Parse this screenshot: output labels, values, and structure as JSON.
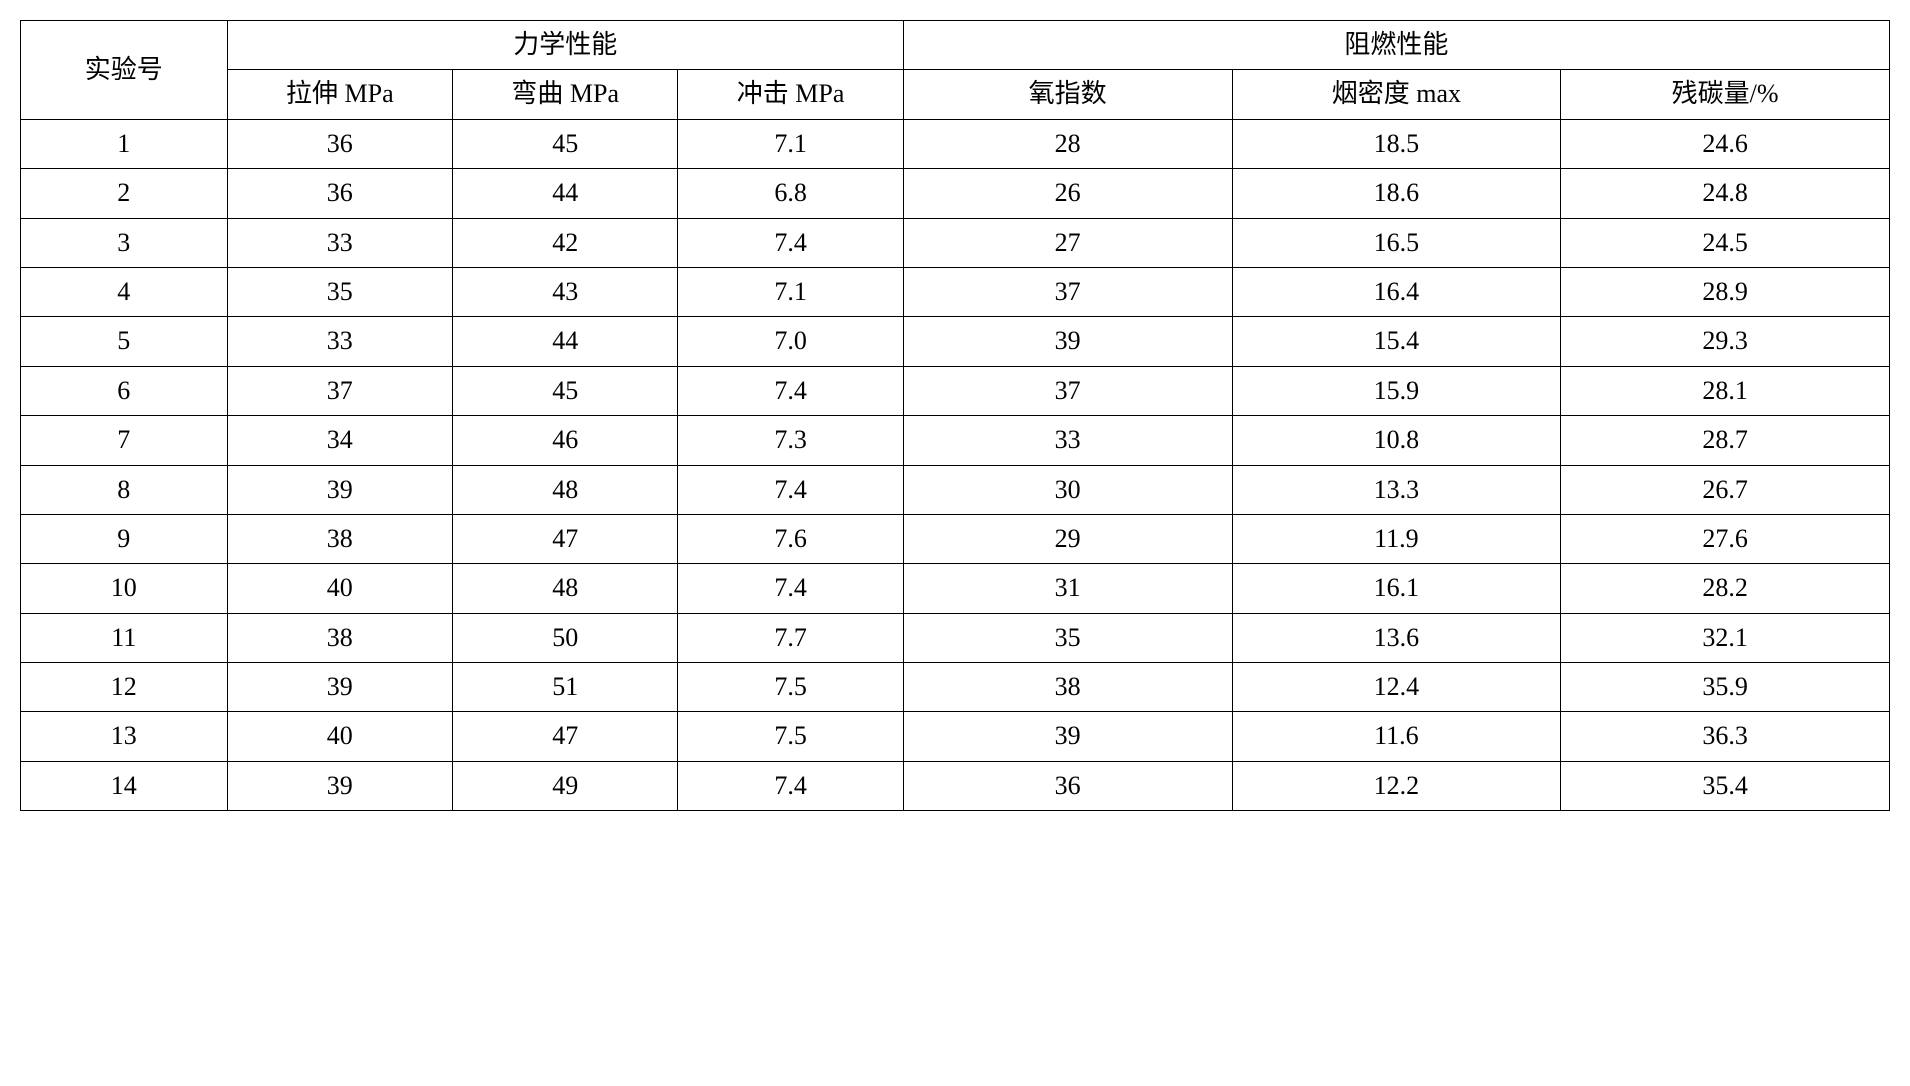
{
  "table": {
    "type": "table",
    "background_color": "#ffffff",
    "border_color": "#000000",
    "font_family": "SimSun",
    "font_size_pt": 20,
    "text_color": "#000000",
    "group_headers": {
      "exp": "实验号",
      "mech": "力学性能",
      "flame": "阻燃性能"
    },
    "sub_headers": {
      "tensile": "拉伸 MPa",
      "bending": "弯曲 MPa",
      "impact": "冲击 MPa",
      "oxygen": "氧指数",
      "smoke": "烟密度 max",
      "carbon": "残碳量/%"
    },
    "rows": [
      {
        "exp": "1",
        "tensile": "36",
        "bending": "45",
        "impact": "7.1",
        "oxygen": "28",
        "smoke": "18.5",
        "carbon": "24.6"
      },
      {
        "exp": "2",
        "tensile": "36",
        "bending": "44",
        "impact": "6.8",
        "oxygen": "26",
        "smoke": "18.6",
        "carbon": "24.8"
      },
      {
        "exp": "3",
        "tensile": "33",
        "bending": "42",
        "impact": "7.4",
        "oxygen": "27",
        "smoke": "16.5",
        "carbon": "24.5"
      },
      {
        "exp": "4",
        "tensile": "35",
        "bending": "43",
        "impact": "7.1",
        "oxygen": "37",
        "smoke": "16.4",
        "carbon": "28.9"
      },
      {
        "exp": "5",
        "tensile": "33",
        "bending": "44",
        "impact": "7.0",
        "oxygen": "39",
        "smoke": "15.4",
        "carbon": "29.3"
      },
      {
        "exp": "6",
        "tensile": "37",
        "bending": "45",
        "impact": "7.4",
        "oxygen": "37",
        "smoke": "15.9",
        "carbon": "28.1"
      },
      {
        "exp": "7",
        "tensile": "34",
        "bending": "46",
        "impact": "7.3",
        "oxygen": "33",
        "smoke": "10.8",
        "carbon": "28.7"
      },
      {
        "exp": "8",
        "tensile": "39",
        "bending": "48",
        "impact": "7.4",
        "oxygen": "30",
        "smoke": "13.3",
        "carbon": "26.7"
      },
      {
        "exp": "9",
        "tensile": "38",
        "bending": "47",
        "impact": "7.6",
        "oxygen": "29",
        "smoke": "11.9",
        "carbon": "27.6"
      },
      {
        "exp": "10",
        "tensile": "40",
        "bending": "48",
        "impact": "7.4",
        "oxygen": "31",
        "smoke": "16.1",
        "carbon": "28.2"
      },
      {
        "exp": "11",
        "tensile": "38",
        "bending": "50",
        "impact": "7.7",
        "oxygen": "35",
        "smoke": "13.6",
        "carbon": "32.1"
      },
      {
        "exp": "12",
        "tensile": "39",
        "bending": "51",
        "impact": "7.5",
        "oxygen": "38",
        "smoke": "12.4",
        "carbon": "35.9"
      },
      {
        "exp": "13",
        "tensile": "40",
        "bending": "47",
        "impact": "7.5",
        "oxygen": "39",
        "smoke": "11.6",
        "carbon": "36.3"
      },
      {
        "exp": "14",
        "tensile": "39",
        "bending": "49",
        "impact": "7.4",
        "oxygen": "36",
        "smoke": "12.2",
        "carbon": "35.4"
      }
    ]
  }
}
